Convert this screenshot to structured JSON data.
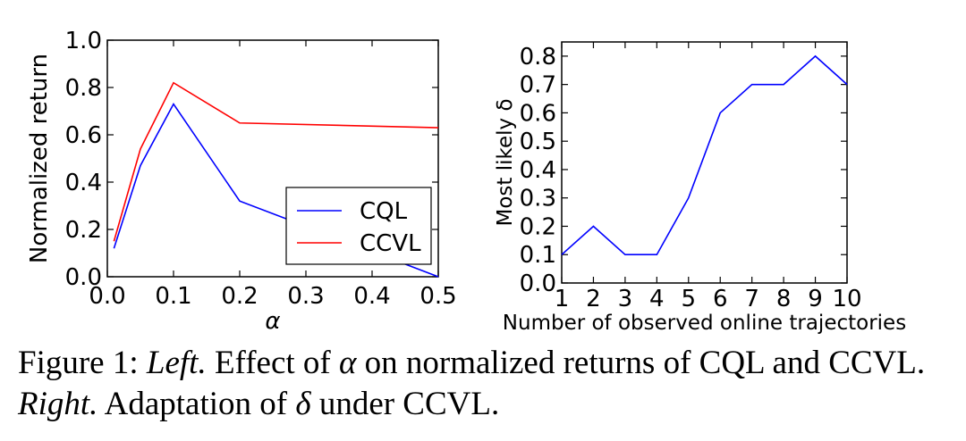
{
  "chart_data": [
    {
      "type": "line",
      "x": [
        0.01,
        0.05,
        0.1,
        0.2,
        0.5
      ],
      "series": [
        {
          "name": "CQL",
          "color": "#0000ff",
          "values": [
            0.12,
            0.47,
            0.73,
            0.32,
            0.0
          ]
        },
        {
          "name": "CCVL",
          "color": "#ff0000",
          "values": [
            0.15,
            0.54,
            0.82,
            0.65,
            0.63
          ]
        }
      ],
      "xlabel": "α",
      "ylabel": "Normalized return",
      "xlim": [
        0,
        0.5
      ],
      "ylim": [
        0,
        1.0
      ],
      "xticks": [
        "0.0",
        "0.1",
        "0.2",
        "0.3",
        "0.4",
        "0.5"
      ],
      "yticks": [
        "0.0",
        "0.2",
        "0.4",
        "0.6",
        "0.8",
        "1.0"
      ],
      "legend": "lower-right"
    },
    {
      "type": "line",
      "x": [
        1,
        2,
        3,
        4,
        5,
        6,
        7,
        8,
        9,
        10
      ],
      "series": [
        {
          "name": "Most likely δ",
          "color": "#0000ff",
          "values": [
            0.1,
            0.2,
            0.1,
            0.1,
            0.3,
            0.6,
            0.7,
            0.7,
            0.8,
            0.7
          ]
        }
      ],
      "xlabel": "Number of observed online trajectories",
      "ylabel": "Most likely δ",
      "xlim": [
        1,
        10
      ],
      "ylim": [
        0,
        0.85
      ],
      "xticks": [
        "1",
        "2",
        "3",
        "4",
        "5",
        "6",
        "7",
        "8",
        "9",
        "10"
      ],
      "yticks": [
        "0.0",
        "0.1",
        "0.2",
        "0.3",
        "0.4",
        "0.5",
        "0.6",
        "0.7",
        "0.8"
      ]
    }
  ],
  "caption": {
    "prefix": "Figure 1: ",
    "left": "Left.",
    "middle1": " Effect of ",
    "alpha": "α",
    "middle2": " on normalized returns of CQL and CCVL. ",
    "right": "Right.",
    "middle3": " Adaptation of ",
    "delta": "δ",
    "suffix": " under CCVL."
  }
}
